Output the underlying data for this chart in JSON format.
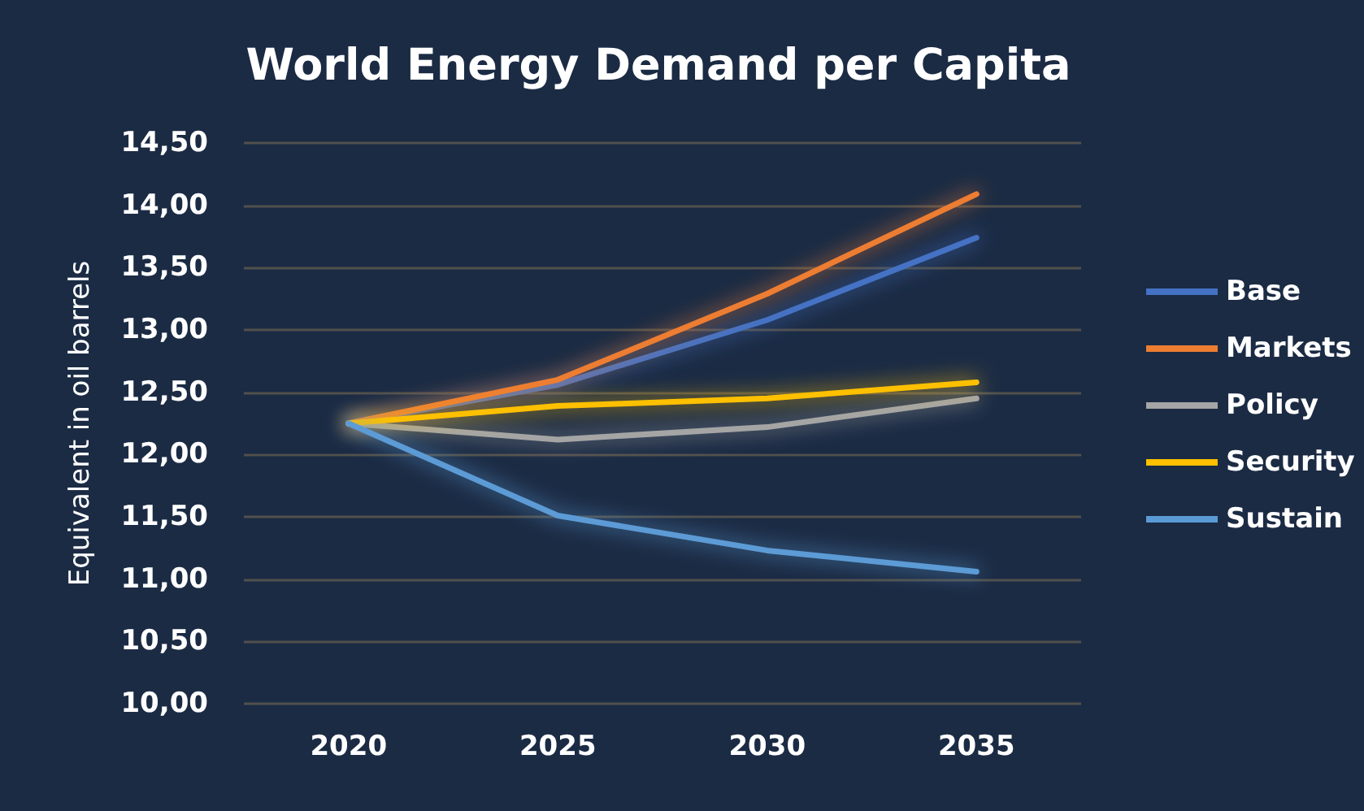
{
  "chart_data": {
    "type": "line",
    "title": "World Energy Demand per Capita",
    "ylabel": "Equivalent in oil barrels",
    "categories": [
      "2020",
      "2025",
      "2030",
      "2035"
    ],
    "series": [
      {
        "name": "Base",
        "color": "#4472c4",
        "values": [
          12.25,
          12.56,
          13.08,
          13.74
        ]
      },
      {
        "name": "Markets",
        "color": "#ed7d31",
        "values": [
          12.25,
          12.6,
          13.29,
          14.09
        ]
      },
      {
        "name": "Policy",
        "color": "#a5a5a5",
        "values": [
          12.25,
          12.12,
          12.22,
          12.45
        ]
      },
      {
        "name": "Security",
        "color": "#ffc000",
        "values": [
          12.25,
          12.39,
          12.45,
          12.58
        ]
      },
      {
        "name": "Sustain",
        "color": "#5b9bd5",
        "values": [
          12.25,
          11.51,
          11.23,
          11.06
        ]
      }
    ],
    "ylim": [
      10,
      14.5
    ],
    "yticks": [
      {
        "value": 10,
        "label": "10,00"
      },
      {
        "value": 10.5,
        "label": "10,50"
      },
      {
        "value": 11,
        "label": "11,00"
      },
      {
        "value": 11.5,
        "label": "11,50"
      },
      {
        "value": 12,
        "label": "12,00"
      },
      {
        "value": 12.5,
        "label": "12,50"
      },
      {
        "value": 13,
        "label": "13,00"
      },
      {
        "value": 13.5,
        "label": "13,50"
      },
      {
        "value": 14,
        "label": "14,00"
      },
      {
        "value": 14.5,
        "label": "14,50"
      }
    ],
    "grid": "y",
    "legend": "right",
    "marker": "none",
    "line_style": "solid"
  }
}
